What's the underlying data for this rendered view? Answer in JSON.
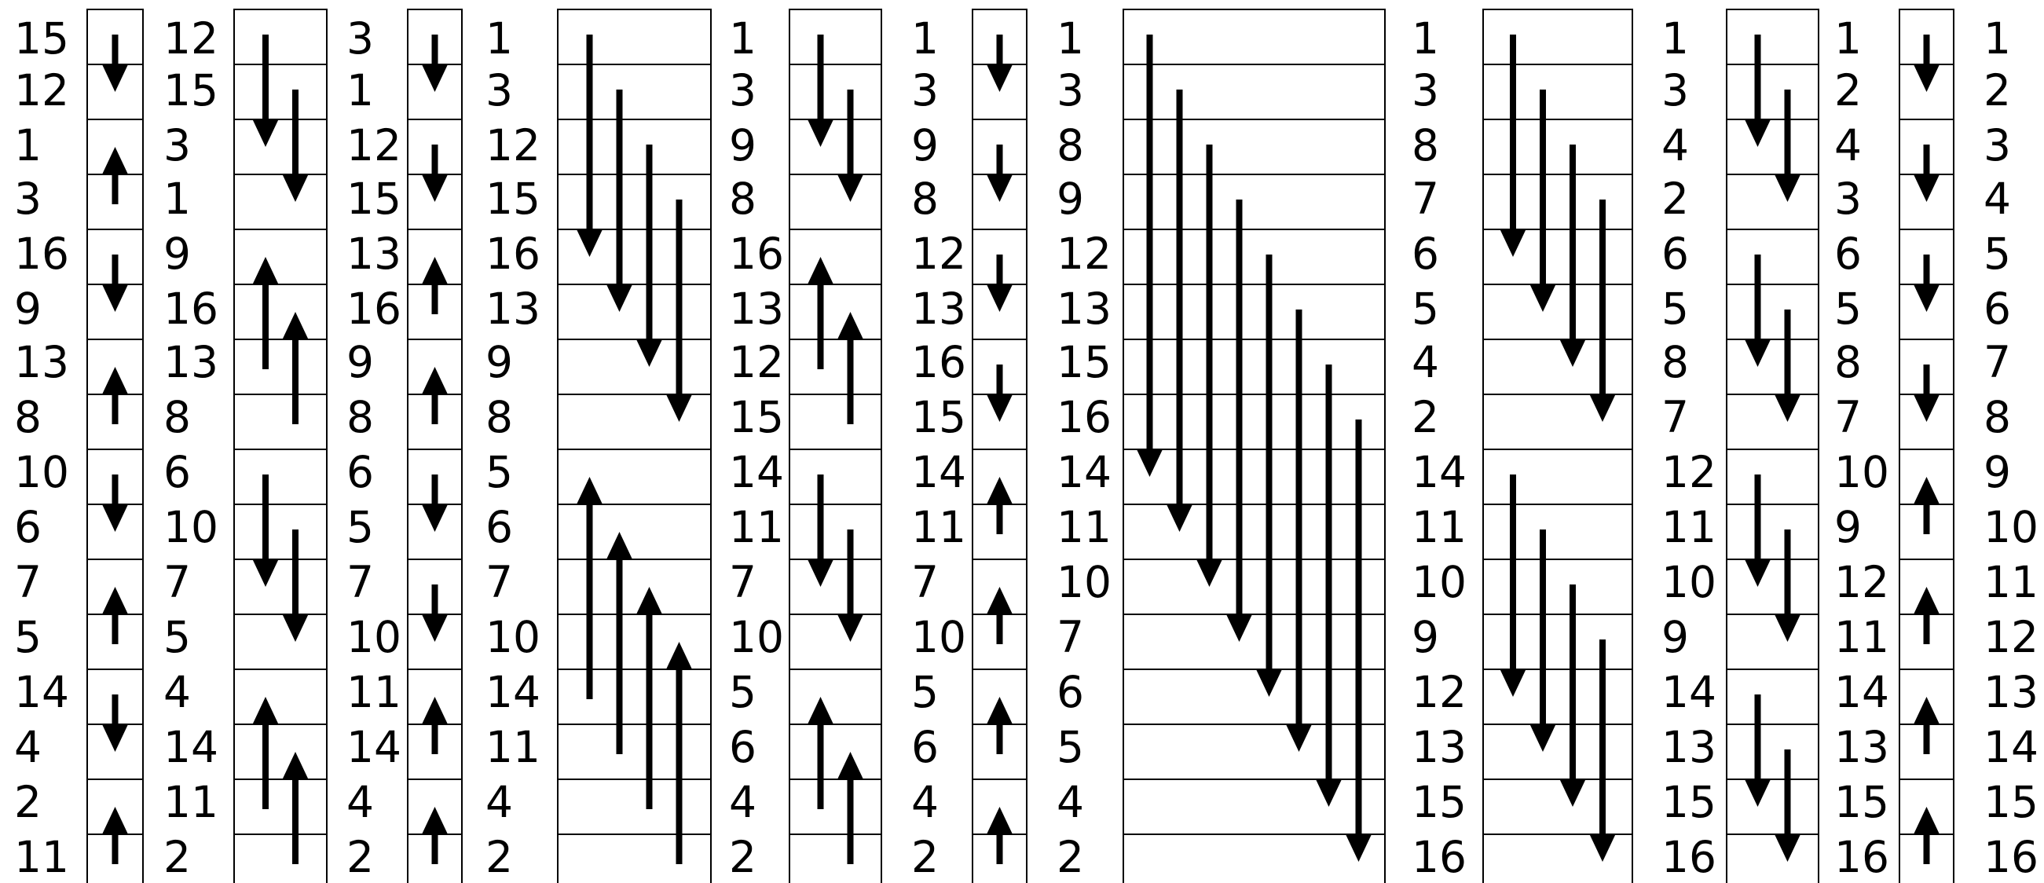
{
  "chart_data": {
    "type": "bitonic-sorting-network",
    "columns": [
      [
        "15",
        "12",
        "1",
        "3",
        "16",
        "9",
        "13",
        "8",
        "10",
        "6",
        "7",
        "5",
        "14",
        "4",
        "2",
        "11"
      ],
      [
        "12",
        "15",
        "3",
        "1",
        "9",
        "16",
        "13",
        "8",
        "6",
        "10",
        "7",
        "5",
        "4",
        "14",
        "11",
        "2"
      ],
      [
        "3",
        "1",
        "12",
        "15",
        "13",
        "16",
        "9",
        "8",
        "6",
        "5",
        "7",
        "10",
        "11",
        "14",
        "4",
        "2"
      ],
      [
        "1",
        "3",
        "12",
        "15",
        "16",
        "13",
        "9",
        "8",
        "5",
        "6",
        "7",
        "10",
        "14",
        "11",
        "4",
        "2"
      ],
      [
        "1",
        "3",
        "9",
        "8",
        "16",
        "13",
        "12",
        "15",
        "14",
        "11",
        "7",
        "10",
        "5",
        "6",
        "4",
        "2"
      ],
      [
        "1",
        "3",
        "9",
        "8",
        "12",
        "13",
        "16",
        "15",
        "14",
        "11",
        "7",
        "10",
        "5",
        "6",
        "4",
        "2"
      ],
      [
        "1",
        "3",
        "8",
        "9",
        "12",
        "13",
        "15",
        "16",
        "14",
        "11",
        "10",
        "7",
        "6",
        "5",
        "4",
        "2"
      ],
      [
        "1",
        "3",
        "8",
        "7",
        "6",
        "5",
        "4",
        "2",
        "14",
        "11",
        "10",
        "9",
        "12",
        "13",
        "15",
        "16"
      ],
      [
        "1",
        "3",
        "4",
        "2",
        "6",
        "5",
        "8",
        "7",
        "12",
        "11",
        "10",
        "9",
        "14",
        "13",
        "15",
        "16"
      ],
      [
        "1",
        "2",
        "4",
        "3",
        "6",
        "5",
        "8",
        "7",
        "10",
        "9",
        "12",
        "11",
        "14",
        "13",
        "15",
        "16"
      ],
      [
        "1",
        "2",
        "3",
        "4",
        "5",
        "6",
        "7",
        "8",
        "9",
        "10",
        "11",
        "12",
        "13",
        "14",
        "15",
        "16"
      ]
    ],
    "stages": [
      {
        "span": 1,
        "arrows": [
          [
            0,
            1,
            "down"
          ],
          [
            2,
            3,
            "up"
          ],
          [
            4,
            5,
            "down"
          ],
          [
            6,
            7,
            "up"
          ],
          [
            8,
            9,
            "down"
          ],
          [
            10,
            11,
            "up"
          ],
          [
            12,
            13,
            "down"
          ],
          [
            14,
            15,
            "up"
          ]
        ]
      },
      {
        "span": 2,
        "arrows": [
          [
            0,
            2,
            "down"
          ],
          [
            1,
            3,
            "down"
          ],
          [
            4,
            6,
            "up"
          ],
          [
            5,
            7,
            "up"
          ],
          [
            8,
            10,
            "down"
          ],
          [
            9,
            11,
            "down"
          ],
          [
            12,
            14,
            "up"
          ],
          [
            13,
            15,
            "up"
          ]
        ]
      },
      {
        "span": 1,
        "arrows": [
          [
            0,
            1,
            "down"
          ],
          [
            2,
            3,
            "down"
          ],
          [
            4,
            5,
            "up"
          ],
          [
            6,
            7,
            "up"
          ],
          [
            8,
            9,
            "down"
          ],
          [
            10,
            11,
            "down"
          ],
          [
            12,
            13,
            "up"
          ],
          [
            14,
            15,
            "up"
          ]
        ]
      },
      {
        "span": 4,
        "arrows": [
          [
            0,
            4,
            "down"
          ],
          [
            1,
            5,
            "down"
          ],
          [
            2,
            6,
            "down"
          ],
          [
            3,
            7,
            "down"
          ],
          [
            8,
            12,
            "up"
          ],
          [
            9,
            13,
            "up"
          ],
          [
            10,
            14,
            "up"
          ],
          [
            11,
            15,
            "up"
          ]
        ]
      },
      {
        "span": 2,
        "arrows": [
          [
            0,
            2,
            "down"
          ],
          [
            1,
            3,
            "down"
          ],
          [
            4,
            6,
            "up"
          ],
          [
            5,
            7,
            "up"
          ],
          [
            8,
            10,
            "down"
          ],
          [
            9,
            11,
            "down"
          ],
          [
            12,
            14,
            "up"
          ],
          [
            13,
            15,
            "up"
          ]
        ]
      },
      {
        "span": 1,
        "arrows": [
          [
            0,
            1,
            "down"
          ],
          [
            2,
            3,
            "down"
          ],
          [
            4,
            5,
            "down"
          ],
          [
            6,
            7,
            "down"
          ],
          [
            8,
            9,
            "up"
          ],
          [
            10,
            11,
            "up"
          ],
          [
            12,
            13,
            "up"
          ],
          [
            14,
            15,
            "up"
          ]
        ]
      },
      {
        "span": 8,
        "arrows": [
          [
            0,
            8,
            "down"
          ],
          [
            1,
            9,
            "down"
          ],
          [
            2,
            10,
            "down"
          ],
          [
            3,
            11,
            "down"
          ],
          [
            4,
            12,
            "down"
          ],
          [
            5,
            13,
            "down"
          ],
          [
            6,
            14,
            "down"
          ],
          [
            7,
            15,
            "down"
          ]
        ]
      },
      {
        "span": 4,
        "arrows": [
          [
            0,
            4,
            "down"
          ],
          [
            1,
            5,
            "down"
          ],
          [
            2,
            6,
            "down"
          ],
          [
            3,
            7,
            "down"
          ],
          [
            8,
            12,
            "down"
          ],
          [
            9,
            13,
            "down"
          ],
          [
            10,
            14,
            "down"
          ],
          [
            11,
            15,
            "down"
          ]
        ]
      },
      {
        "span": 2,
        "arrows": [
          [
            0,
            2,
            "down"
          ],
          [
            1,
            3,
            "down"
          ],
          [
            4,
            6,
            "down"
          ],
          [
            5,
            7,
            "down"
          ],
          [
            8,
            10,
            "down"
          ],
          [
            9,
            11,
            "down"
          ],
          [
            12,
            14,
            "down"
          ],
          [
            13,
            15,
            "down"
          ]
        ]
      },
      {
        "span": 1,
        "arrows": [
          [
            0,
            1,
            "down"
          ],
          [
            2,
            3,
            "down"
          ],
          [
            4,
            5,
            "down"
          ],
          [
            6,
            7,
            "down"
          ],
          [
            8,
            9,
            "up"
          ],
          [
            10,
            11,
            "up"
          ],
          [
            12,
            13,
            "up"
          ],
          [
            14,
            15,
            "up"
          ]
        ]
      }
    ]
  }
}
